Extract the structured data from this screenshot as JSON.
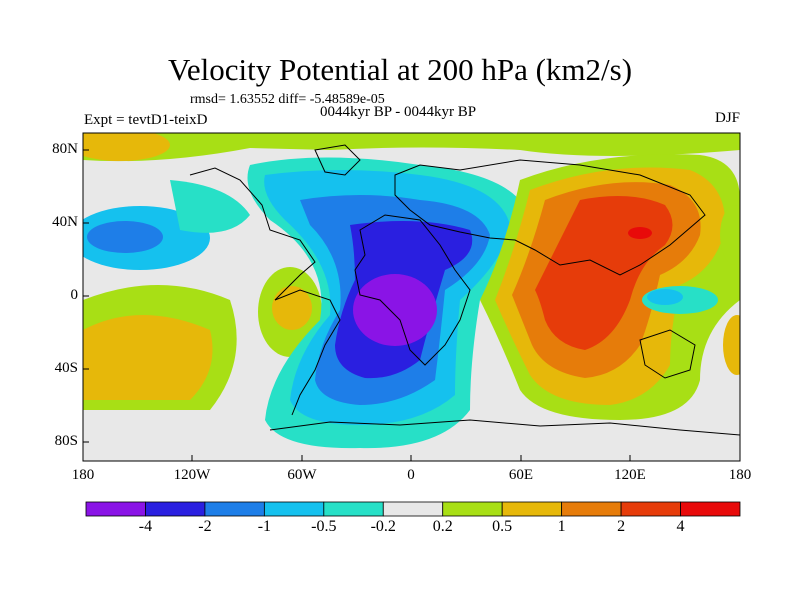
{
  "title": "Velocity Potential at 200 hPa (km2/s)",
  "stats": "rmsd= 1.63552 diff= -5.48589e-05",
  "experiment": "Expt = tevtD1-teixD",
  "period": "0044kyr BP - 0044kyr BP",
  "season": "DJF",
  "lat_ticks": [
    "80N",
    "40N",
    "0",
    "40S",
    "80S"
  ],
  "lon_ticks": [
    "180",
    "120W",
    "60W",
    "0",
    "60E",
    "120E",
    "180"
  ],
  "colorbar": {
    "labels": [
      "-4",
      "-2",
      "-1",
      "-0.5",
      "-0.2",
      "0.2",
      "0.5",
      "1",
      "2",
      "4"
    ],
    "colors": [
      "#8a14e6",
      "#2a1fe0",
      "#1e7ee8",
      "#15c1ee",
      "#27e0c7",
      "#e8e8e8",
      "#a8df15",
      "#e6b80a",
      "#e67c0a",
      "#e63c0a",
      "#e80a0a"
    ]
  },
  "map": {
    "projection": "cylindrical equidistant",
    "extent": {
      "lon": [
        -180,
        180
      ],
      "lat": [
        -90,
        90
      ]
    },
    "background_color": "#e8e8e8",
    "coastlines": true
  }
}
